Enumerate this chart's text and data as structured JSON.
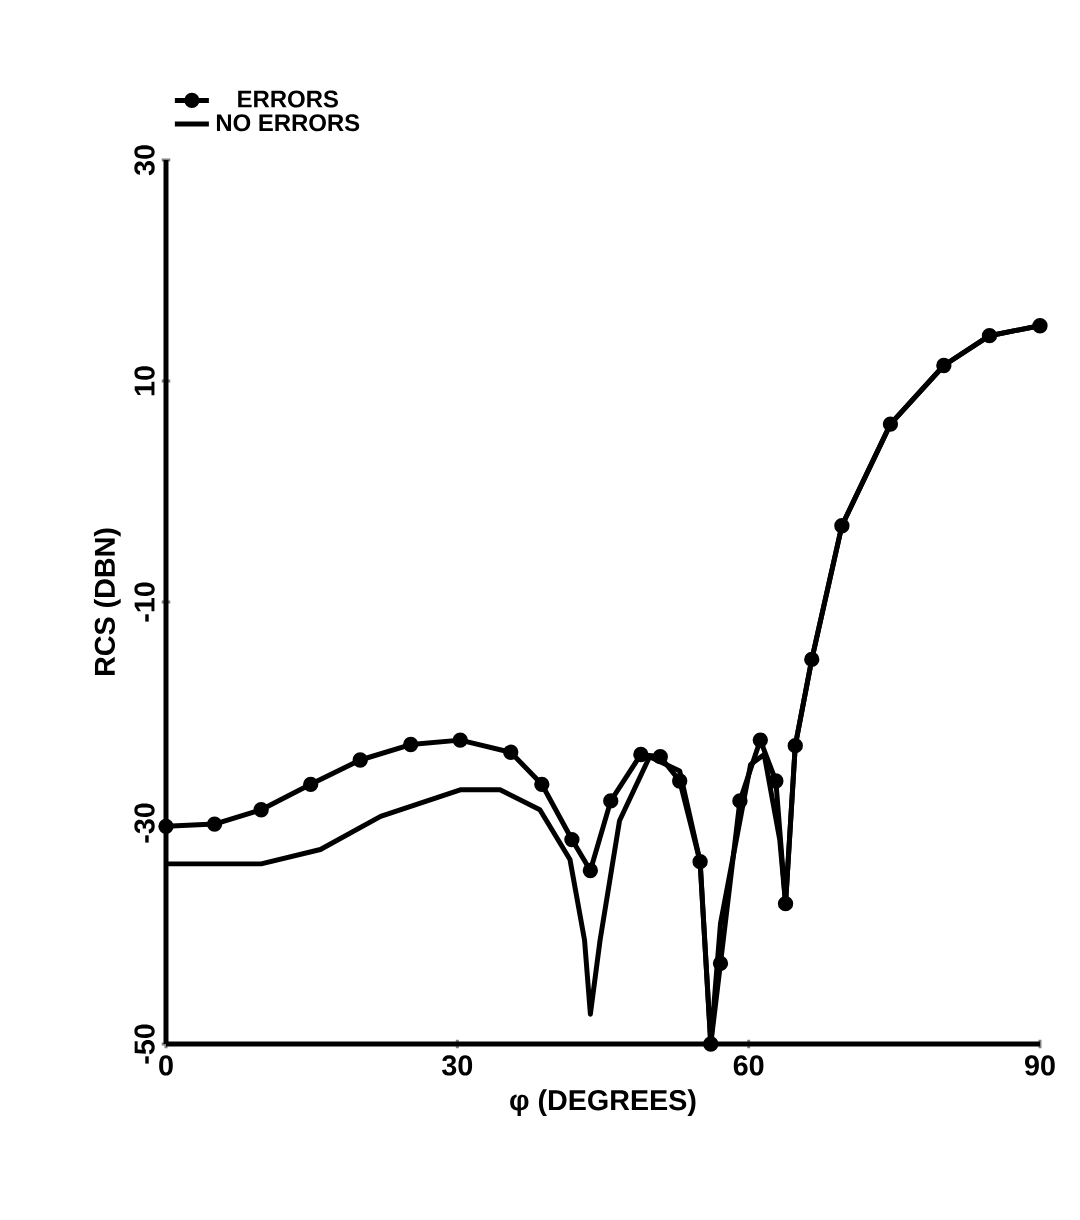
{
  "chart_data": {
    "type": "line",
    "xlabel": "φ (DEGREES)",
    "ylabel": "RCS (DBN)",
    "xlim": [
      0,
      90
    ],
    "ylim": [
      -50,
      30
    ],
    "xticks": [
      0,
      30,
      60,
      90
    ],
    "yticks": [
      -50,
      -30,
      -10,
      10,
      30
    ],
    "grid": false,
    "legend": "top left",
    "series": [
      {
        "name": "ERRORS",
        "color": "#000000",
        "marker": "circle",
        "x": [
          0,
          5,
          9.8,
          14.9,
          20,
          25.2,
          30.3,
          35.5,
          38.7,
          41.8,
          43.7,
          45.8,
          48.9,
          50.9,
          52.9,
          55,
          56.1,
          57.1,
          59.1,
          61.2,
          62.8,
          63.8,
          64.8,
          66.5,
          69.6,
          74.6,
          80.1,
          84.8,
          90
        ],
        "values": [
          -30.3,
          -30.1,
          -28.8,
          -26.5,
          -24.3,
          -22.9,
          -22.5,
          -23.6,
          -26.5,
          -31.5,
          -34.3,
          -28,
          -23.8,
          -24,
          -26.2,
          -33.5,
          -50,
          -42.7,
          -28,
          -22.5,
          -26.2,
          -37.3,
          -23,
          -15.2,
          -3.1,
          6.1,
          11.4,
          14.1,
          15
        ]
      },
      {
        "name": "NO ERRORS",
        "color": "#000000",
        "marker": "none",
        "x": [
          0,
          9.8,
          15.9,
          22.1,
          30.3,
          34.4,
          38.5,
          41.6,
          43.1,
          43.7,
          44.7,
          46.7,
          49.8,
          52.9,
          55,
          56.1,
          57.1,
          60.2,
          61.6,
          63.2,
          63.8,
          64.8,
          66.5,
          69.6,
          74.6,
          80.1,
          84.8,
          90
        ],
        "values": [
          -33.7,
          -33.7,
          -32.4,
          -29.4,
          -27,
          -27,
          -28.8,
          -33.3,
          -40.6,
          -47.3,
          -40.6,
          -29.8,
          -24,
          -25.3,
          -33.5,
          -50,
          -39.1,
          -24.7,
          -23.8,
          -31.5,
          -37.3,
          -23,
          -15.2,
          -3.1,
          6.1,
          11.4,
          14.1,
          15
        ]
      }
    ]
  }
}
